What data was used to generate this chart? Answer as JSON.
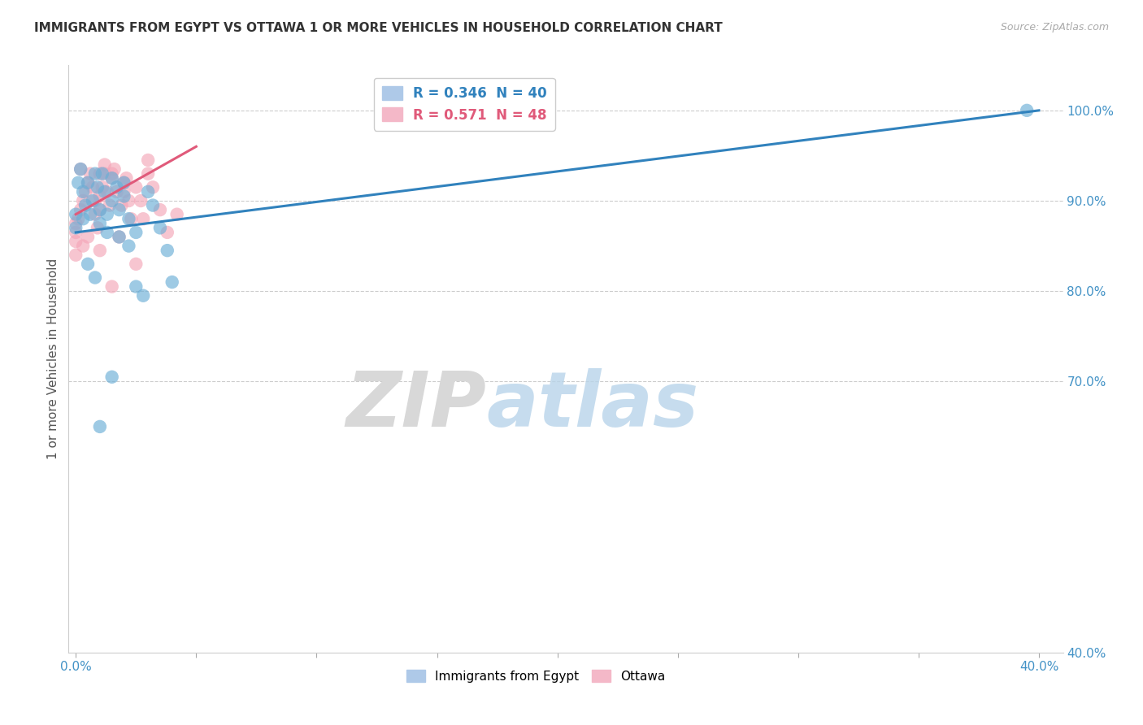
{
  "title": "IMMIGRANTS FROM EGYPT VS OTTAWA 1 OR MORE VEHICLES IN HOUSEHOLD CORRELATION CHART",
  "source": "Source: ZipAtlas.com",
  "ylabel": "1 or more Vehicles in Household",
  "watermark_zip": "ZIP",
  "watermark_atlas": "atlas",
  "blue_color": "#6baed6",
  "pink_color": "#f4a6b8",
  "blue_line_color": "#3182bd",
  "pink_line_color": "#e05a7a",
  "legend_blue_text_color": "#3182bd",
  "legend_pink_text_color": "#e05a7a",
  "right_axis_color": "#4292c6",
  "background_color": "#ffffff",
  "grid_color": "#cccccc",
  "blue_x": [
    0.0,
    0.0,
    0.1,
    0.2,
    0.3,
    0.4,
    0.5,
    0.6,
    0.7,
    0.8,
    0.9,
    1.0,
    1.0,
    1.1,
    1.2,
    1.3,
    1.5,
    1.5,
    1.7,
    1.8,
    2.0,
    2.0,
    2.2,
    2.5,
    3.0,
    3.2,
    3.5,
    4.0,
    1.5,
    2.8,
    1.0,
    2.5,
    0.5,
    1.8,
    3.8,
    2.2,
    0.3,
    1.3,
    0.8,
    39.5
  ],
  "blue_y": [
    87.0,
    88.5,
    92.0,
    93.5,
    91.0,
    89.5,
    92.0,
    88.5,
    90.0,
    93.0,
    91.5,
    89.0,
    87.5,
    93.0,
    91.0,
    88.5,
    92.5,
    90.0,
    91.5,
    89.0,
    92.0,
    90.5,
    88.0,
    86.5,
    91.0,
    89.5,
    87.0,
    81.0,
    70.5,
    79.5,
    65.0,
    80.5,
    83.0,
    86.0,
    84.5,
    85.0,
    88.0,
    86.5,
    81.5,
    100.0
  ],
  "pink_x": [
    0.0,
    0.0,
    0.0,
    0.0,
    0.1,
    0.2,
    0.3,
    0.4,
    0.5,
    0.6,
    0.7,
    0.8,
    0.9,
    1.0,
    1.0,
    1.1,
    1.2,
    1.3,
    1.4,
    1.5,
    1.6,
    1.7,
    1.8,
    1.9,
    2.0,
    2.1,
    2.2,
    2.3,
    2.5,
    2.7,
    3.0,
    3.2,
    3.5,
    3.8,
    4.2,
    1.0,
    0.5,
    1.5,
    2.0,
    0.2,
    1.2,
    0.8,
    2.8,
    3.0,
    1.5,
    2.5,
    0.3,
    1.0
  ],
  "pink_y": [
    84.0,
    85.5,
    86.5,
    87.5,
    88.0,
    89.0,
    90.0,
    91.0,
    92.0,
    93.0,
    91.5,
    88.5,
    87.0,
    90.5,
    89.0,
    91.5,
    93.0,
    91.0,
    89.5,
    92.5,
    93.5,
    91.0,
    86.0,
    89.5,
    91.0,
    92.5,
    90.0,
    88.0,
    91.5,
    90.0,
    93.0,
    91.5,
    89.0,
    86.5,
    88.5,
    84.5,
    86.0,
    93.0,
    92.0,
    93.5,
    94.0,
    90.0,
    88.0,
    94.5,
    80.5,
    83.0,
    85.0,
    93.0
  ],
  "blue_trendline_x": [
    0.0,
    40.0
  ],
  "blue_trendline_y": [
    86.5,
    100.0
  ],
  "pink_trendline_x": [
    0.0,
    5.0
  ],
  "pink_trendline_y": [
    88.5,
    96.0
  ],
  "xlim_min": -0.3,
  "xlim_max": 41.0,
  "ylim_min": 40.0,
  "ylim_max": 105.0,
  "right_yticks": [
    40.0,
    70.0,
    80.0,
    90.0,
    100.0
  ],
  "right_ytick_labels": [
    "40.0%",
    "70.0%",
    "80.0%",
    "90.0%",
    "100.0%"
  ],
  "hgrid_lines": [
    70.0,
    80.0,
    90.0,
    100.0
  ]
}
